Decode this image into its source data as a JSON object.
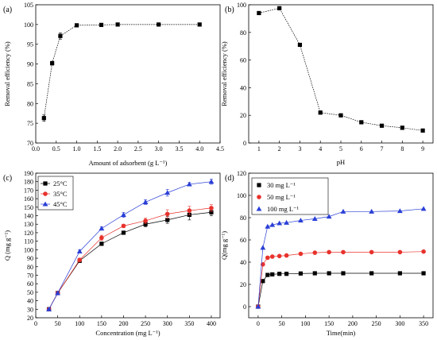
{
  "chart_data": [
    {
      "panel_label": "(a)",
      "type": "line",
      "xlabel": "Amount of adsorbent (g L⁻¹)",
      "ylabel": "Removal efficiency (%)",
      "xlim": [
        0.0,
        4.5
      ],
      "ylim": [
        70,
        105
      ],
      "xticks": [
        0.0,
        0.5,
        1.0,
        1.5,
        2.0,
        2.5,
        3.0,
        3.5,
        4.0,
        4.5
      ],
      "xtick_labels": [
        "0.0",
        "0.5",
        "1.0",
        "1.5",
        "2.0",
        "2.5",
        "3.0",
        "3.5",
        "4.0",
        "4.5"
      ],
      "yticks": [
        70,
        75,
        80,
        85,
        90,
        95,
        100,
        105
      ],
      "ytick_labels": [
        "70",
        "75",
        "80",
        "85",
        "90",
        "95",
        "100",
        "105"
      ],
      "grid": false,
      "series": [
        {
          "marker": "square",
          "color": "#000000",
          "x": [
            0.2,
            0.4,
            0.6,
            1.0,
            1.6,
            2.0,
            3.0,
            4.0
          ],
          "y": [
            76.3,
            90.2,
            97.1,
            99.8,
            99.9,
            100.0,
            100.0,
            100.0
          ],
          "err": [
            0.8,
            0.5,
            0.8,
            0.4,
            0.4,
            0.3,
            0.2,
            0.2
          ]
        }
      ]
    },
    {
      "panel_label": "(b)",
      "type": "line",
      "xlabel": "pH",
      "ylabel": "Removal efficiency (%)",
      "xlim": [
        0.5,
        9.5
      ],
      "ylim": [
        0,
        100
      ],
      "xticks": [
        1,
        2,
        3,
        4,
        5,
        6,
        7,
        8,
        9
      ],
      "xtick_labels": [
        "1",
        "2",
        "3",
        "4",
        "5",
        "6",
        "7",
        "8",
        "9"
      ],
      "yticks": [
        0,
        20,
        40,
        60,
        80,
        100
      ],
      "ytick_labels": [
        "0",
        "20",
        "40",
        "60",
        "80",
        "100"
      ],
      "grid": false,
      "series": [
        {
          "marker": "square",
          "color": "#000000",
          "x": [
            1,
            2,
            3,
            4,
            5,
            6,
            7,
            8,
            9
          ],
          "y": [
            94,
            97.5,
            71,
            22,
            20,
            15,
            12.5,
            11,
            9
          ],
          "err": [
            0.5,
            0.5,
            0.5,
            1.2,
            0.6,
            0.5,
            0.5,
            1.3,
            0.8
          ]
        }
      ]
    },
    {
      "panel_label": "(c)",
      "type": "line",
      "xlabel": "Concentration (mg L⁻¹)",
      "ylabel": "Q (mg g⁻¹)",
      "xlim": [
        0,
        420
      ],
      "ylim": [
        20,
        190
      ],
      "xticks": [
        0,
        50,
        100,
        150,
        200,
        250,
        300,
        350,
        400
      ],
      "xtick_labels": [
        "0",
        "50",
        "100",
        "150",
        "200",
        "250",
        "300",
        "350",
        "400"
      ],
      "yticks": [
        20,
        30,
        40,
        50,
        60,
        70,
        80,
        90,
        100,
        110,
        120,
        130,
        140,
        150,
        160,
        170,
        180,
        190
      ],
      "ytick_labels": [
        "20",
        "30",
        "40",
        "50",
        "60",
        "70",
        "80",
        "90",
        "100",
        "110",
        "120",
        "130",
        "140",
        "150",
        "160",
        "170",
        "180",
        "190"
      ],
      "grid": false,
      "legend_position": "top-left",
      "series": [
        {
          "name": "25°C",
          "marker": "square",
          "color": "#000000",
          "x": [
            30,
            50,
            100,
            150,
            200,
            250,
            300,
            350,
            400
          ],
          "y": [
            30,
            49,
            87,
            107,
            120,
            130,
            135,
            141,
            144
          ],
          "err": [
            1,
            1,
            2,
            2,
            2,
            3,
            4,
            6,
            4
          ]
        },
        {
          "name": "35°C",
          "marker": "circle",
          "color": "#e8322c",
          "x": [
            30,
            50,
            100,
            150,
            200,
            250,
            300,
            350,
            400
          ],
          "y": [
            30,
            49,
            88,
            114,
            128,
            134,
            142,
            146,
            149
          ],
          "err": [
            1,
            1,
            2,
            3,
            2,
            3,
            5,
            5,
            4
          ]
        },
        {
          "name": "45°C",
          "marker": "triangle",
          "color": "#2a3fd6",
          "x": [
            30,
            50,
            100,
            150,
            200,
            250,
            300,
            350,
            400
          ],
          "y": [
            30,
            49,
            98,
            125,
            141,
            156,
            167,
            177,
            180
          ],
          "err": [
            1,
            1,
            2,
            2,
            3,
            3,
            4,
            2,
            3
          ]
        }
      ]
    },
    {
      "panel_label": "(d)",
      "type": "line",
      "xlabel": "Time(min)",
      "ylabel": "Q(mg g⁻¹)",
      "xlim": [
        -20,
        370
      ],
      "ylim": [
        -10,
        120
      ],
      "xticks": [
        0,
        50,
        100,
        150,
        200,
        250,
        300,
        350
      ],
      "xtick_labels": [
        "0",
        "50",
        "100",
        "150",
        "200",
        "250",
        "300",
        "350"
      ],
      "yticks": [
        0,
        20,
        40,
        60,
        80,
        100,
        120
      ],
      "ytick_labels": [
        "0",
        "20",
        "40",
        "60",
        "80",
        "100",
        "120"
      ],
      "grid": false,
      "legend_position": "top-left",
      "series": [
        {
          "name": "30 mg L⁻¹",
          "marker": "square",
          "color": "#000000",
          "x": [
            0,
            10,
            20,
            30,
            45,
            60,
            90,
            120,
            150,
            180,
            240,
            300,
            350
          ],
          "y": [
            0,
            23,
            28.5,
            29,
            29.5,
            29.5,
            29.8,
            30,
            30,
            30,
            30,
            30,
            30
          ]
        },
        {
          "name": "50 mg L⁻¹",
          "marker": "circle",
          "color": "#e8322c",
          "x": [
            0,
            10,
            20,
            30,
            45,
            60,
            90,
            120,
            150,
            180,
            240,
            300,
            350
          ],
          "y": [
            0,
            38,
            44,
            45,
            45.5,
            46,
            47.5,
            48.5,
            49,
            49,
            49,
            49,
            49.5
          ]
        },
        {
          "name": "100 mg L⁻¹",
          "marker": "triangle",
          "color": "#2a3fd6",
          "x": [
            0,
            10,
            20,
            30,
            45,
            60,
            90,
            120,
            150,
            180,
            240,
            300,
            350
          ],
          "y": [
            0,
            53,
            72,
            73.5,
            75,
            75.5,
            77.5,
            79,
            81,
            85.5,
            85.5,
            86,
            88
          ]
        }
      ]
    }
  ]
}
